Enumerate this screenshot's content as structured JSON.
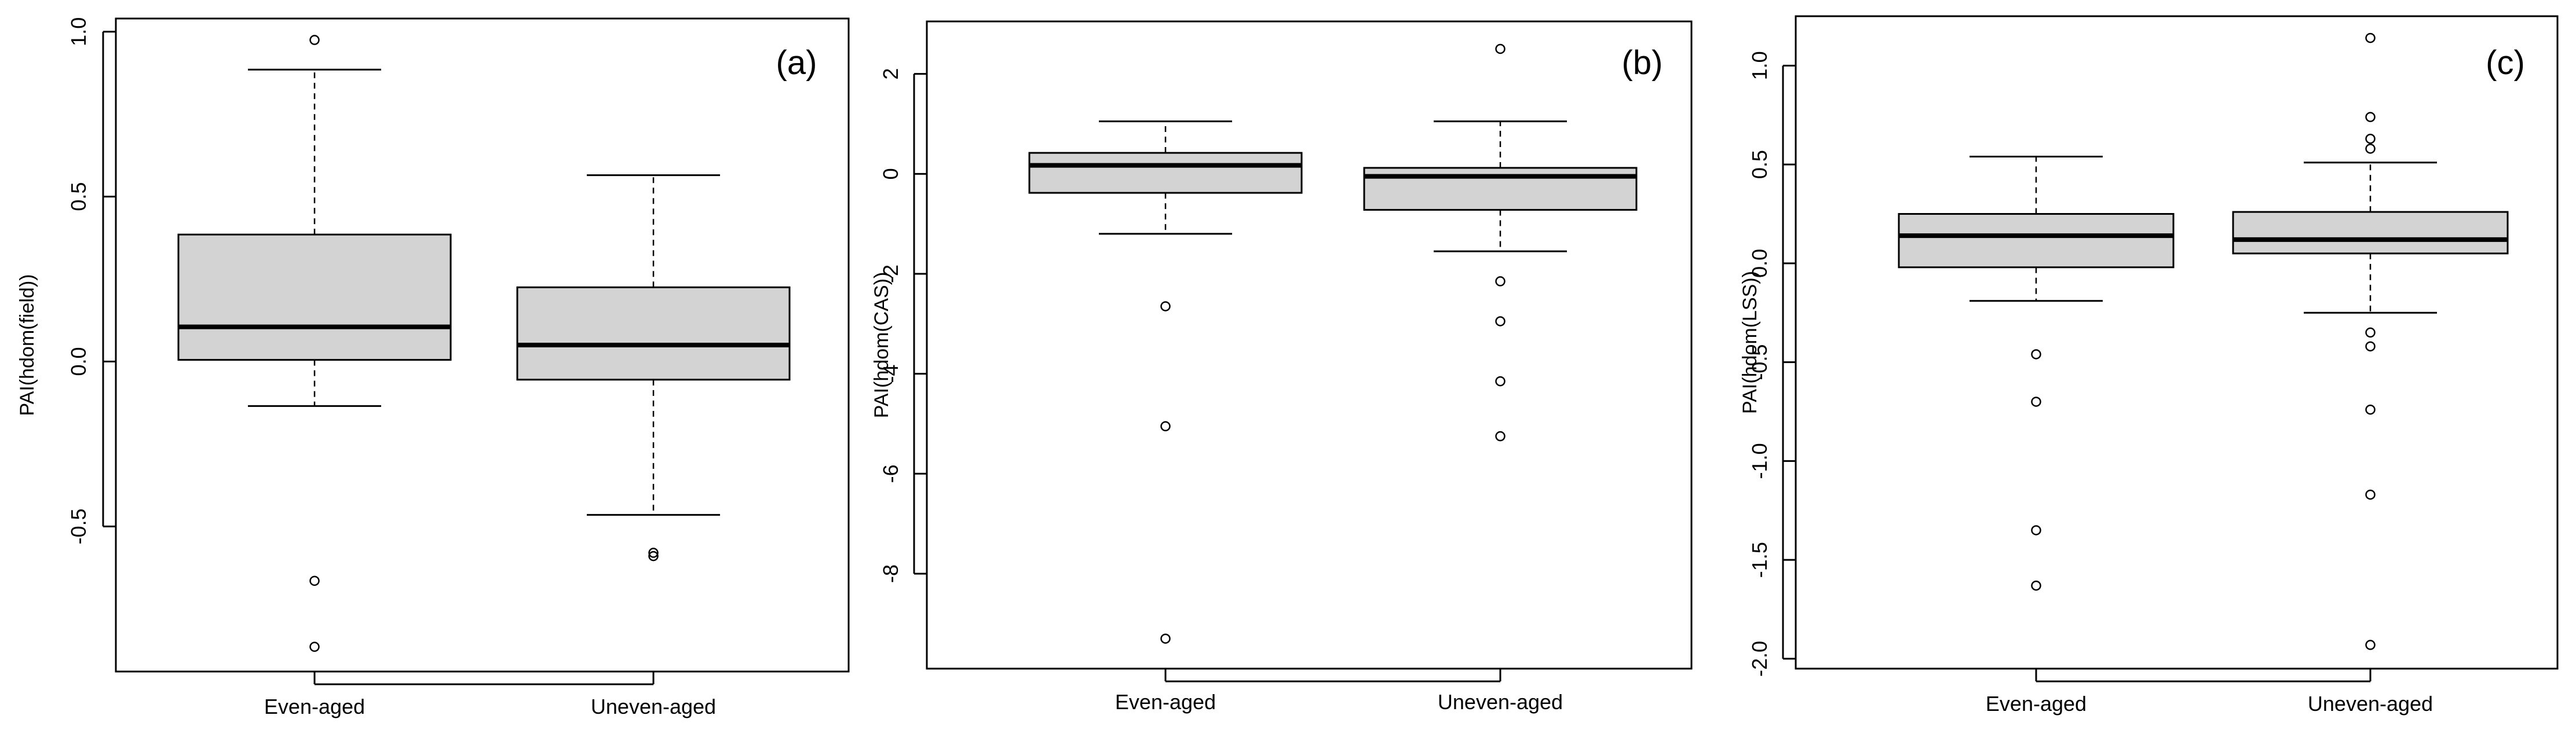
{
  "chart_data": [
    {
      "type": "box",
      "panel_label": "(a)",
      "categories": [
        "Even-aged",
        "Uneven-aged"
      ],
      "ylabel": "PAI(hdom(field))",
      "ylim": [
        -0.94,
        1.04
      ],
      "yticks": [
        -0.5,
        0.0,
        0.5,
        1.0
      ],
      "ytick_labels": [
        "-0.5",
        "0.0",
        "0.5",
        "1.0"
      ],
      "fill_color": "#d3d3d3",
      "boxes": [
        {
          "whisker_low": -0.135,
          "q1": 0.005,
          "median": 0.105,
          "q3": 0.385,
          "whisker_high": 0.885,
          "outliers": [
            0.975,
            -0.665,
            -0.865
          ]
        },
        {
          "whisker_low": -0.465,
          "q1": -0.055,
          "median": 0.05,
          "q3": 0.225,
          "whisker_high": 0.565,
          "outliers": [
            -0.58,
            -0.59
          ]
        }
      ]
    },
    {
      "type": "box",
      "panel_label": "(b)",
      "categories": [
        "Even-aged",
        "Uneven-aged"
      ],
      "ylabel": "PAI(hdom(CAS))",
      "ylim": [
        -9.9,
        3.05
      ],
      "yticks": [
        -8,
        -6,
        -4,
        -2,
        0,
        2
      ],
      "ytick_labels": [
        "-8",
        "-6",
        "-4",
        "-2",
        "0",
        "2"
      ],
      "fill_color": "#d3d3d3",
      "boxes": [
        {
          "whisker_low": -1.2,
          "q1": -0.38,
          "median": 0.17,
          "q3": 0.42,
          "whisker_high": 1.05,
          "outliers": [
            -2.65,
            -5.05,
            -9.3
          ]
        },
        {
          "whisker_low": -1.55,
          "q1": -0.72,
          "median": -0.05,
          "q3": 0.12,
          "whisker_high": 1.05,
          "outliers": [
            2.5,
            -2.15,
            -2.95,
            -4.15,
            -5.25
          ]
        }
      ]
    },
    {
      "type": "box",
      "panel_label": "(c)",
      "categories": [
        "Even-aged",
        "Uneven-aged"
      ],
      "ylabel": "PAI(hdom(LSS))",
      "ylim": [
        -2.05,
        1.25
      ],
      "yticks": [
        -2.0,
        -1.5,
        -1.0,
        -0.5,
        0.0,
        0.5,
        1.0
      ],
      "ytick_labels": [
        "-2.0",
        "-1.5",
        "-1.0",
        "-0.5",
        "0.0",
        "0.5",
        "1.0"
      ],
      "fill_color": "#d3d3d3",
      "boxes": [
        {
          "whisker_low": -0.19,
          "q1": -0.02,
          "median": 0.14,
          "q3": 0.25,
          "whisker_high": 0.54,
          "outliers": [
            -0.46,
            -0.7,
            -1.35,
            -1.63
          ]
        },
        {
          "whisker_low": -0.25,
          "q1": 0.05,
          "median": 0.12,
          "q3": 0.26,
          "whisker_high": 0.51,
          "outliers": [
            1.14,
            0.74,
            0.63,
            0.58,
            -0.35,
            -0.42,
            -0.74,
            -1.17,
            -1.93
          ]
        }
      ]
    }
  ]
}
